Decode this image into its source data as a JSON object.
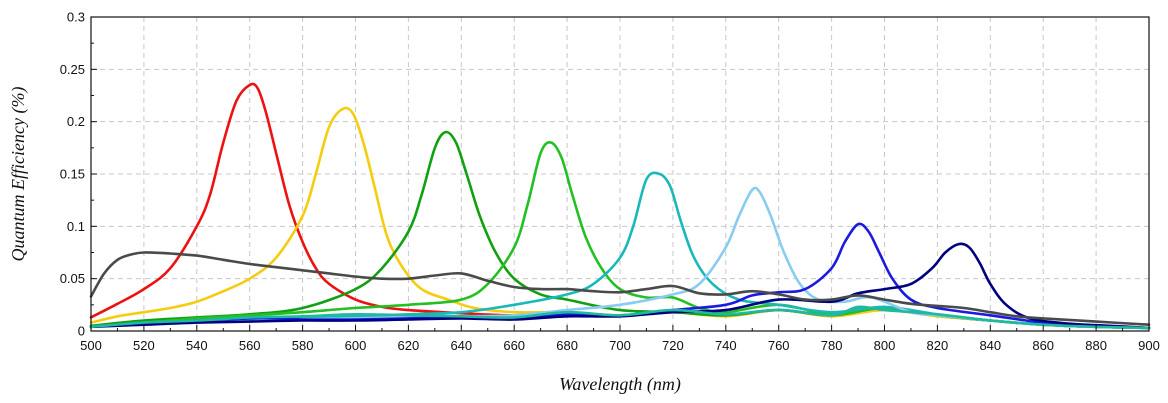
{
  "chart_data": {
    "type": "line",
    "title": "",
    "xlabel": "Wavelength (nm)",
    "ylabel": "Quantum Efficiency (%)",
    "xlim": [
      500,
      900
    ],
    "ylim": [
      0,
      0.3
    ],
    "grid": true,
    "x_ticks": [
      "500",
      "520",
      "540",
      "560",
      "580",
      "600",
      "620",
      "640",
      "660",
      "680",
      "700",
      "720",
      "740",
      "760",
      "780",
      "800",
      "820",
      "840",
      "860",
      "880",
      "900"
    ],
    "y_ticks": [
      "0",
      "0.05",
      "0.1",
      "0.15",
      "0.2",
      "0.25",
      "0.3"
    ],
    "series": [
      {
        "color": "#ee1111",
        "points": [
          [
            500,
            0.013
          ],
          [
            510,
            0.026
          ],
          [
            520,
            0.04
          ],
          [
            530,
            0.06
          ],
          [
            540,
            0.1
          ],
          [
            545,
            0.13
          ],
          [
            550,
            0.18
          ],
          [
            555,
            0.22
          ],
          [
            560,
            0.235
          ],
          [
            563,
            0.232
          ],
          [
            566,
            0.21
          ],
          [
            570,
            0.17
          ],
          [
            575,
            0.12
          ],
          [
            580,
            0.085
          ],
          [
            585,
            0.06
          ],
          [
            590,
            0.045
          ],
          [
            600,
            0.03
          ],
          [
            610,
            0.023
          ],
          [
            620,
            0.02
          ],
          [
            640,
            0.017
          ],
          [
            660,
            0.015
          ],
          [
            680,
            0.017
          ],
          [
            700,
            0.015
          ],
          [
            720,
            0.018
          ],
          [
            740,
            0.015
          ],
          [
            760,
            0.02
          ],
          [
            780,
            0.015
          ],
          [
            800,
            0.022
          ],
          [
            820,
            0.015
          ],
          [
            840,
            0.01
          ],
          [
            860,
            0.006
          ],
          [
            880,
            0.004
          ],
          [
            900,
            0.003
          ]
        ]
      },
      {
        "color": "#f5cc10",
        "points": [
          [
            500,
            0.008
          ],
          [
            510,
            0.014
          ],
          [
            520,
            0.018
          ],
          [
            530,
            0.022
          ],
          [
            540,
            0.028
          ],
          [
            550,
            0.038
          ],
          [
            560,
            0.05
          ],
          [
            570,
            0.07
          ],
          [
            580,
            0.11
          ],
          [
            585,
            0.15
          ],
          [
            590,
            0.195
          ],
          [
            595,
            0.212
          ],
          [
            599,
            0.208
          ],
          [
            603,
            0.18
          ],
          [
            607,
            0.14
          ],
          [
            612,
            0.09
          ],
          [
            618,
            0.06
          ],
          [
            625,
            0.04
          ],
          [
            635,
            0.03
          ],
          [
            645,
            0.022
          ],
          [
            660,
            0.018
          ],
          [
            680,
            0.018
          ],
          [
            700,
            0.015
          ],
          [
            720,
            0.018
          ],
          [
            740,
            0.014
          ],
          [
            760,
            0.02
          ],
          [
            780,
            0.014
          ],
          [
            800,
            0.02
          ],
          [
            820,
            0.014
          ],
          [
            840,
            0.01
          ],
          [
            860,
            0.006
          ],
          [
            880,
            0.004
          ],
          [
            900,
            0.003
          ]
        ]
      },
      {
        "color": "#11a011",
        "points": [
          [
            500,
            0.005
          ],
          [
            520,
            0.01
          ],
          [
            540,
            0.013
          ],
          [
            560,
            0.016
          ],
          [
            580,
            0.022
          ],
          [
            600,
            0.04
          ],
          [
            610,
            0.06
          ],
          [
            620,
            0.095
          ],
          [
            625,
            0.13
          ],
          [
            630,
            0.175
          ],
          [
            634,
            0.19
          ],
          [
            638,
            0.18
          ],
          [
            642,
            0.15
          ],
          [
            647,
            0.11
          ],
          [
            653,
            0.075
          ],
          [
            660,
            0.05
          ],
          [
            670,
            0.035
          ],
          [
            680,
            0.03
          ],
          [
            700,
            0.02
          ],
          [
            720,
            0.018
          ],
          [
            740,
            0.015
          ],
          [
            760,
            0.02
          ],
          [
            780,
            0.015
          ],
          [
            800,
            0.022
          ],
          [
            820,
            0.015
          ],
          [
            840,
            0.01
          ],
          [
            860,
            0.006
          ],
          [
            880,
            0.004
          ],
          [
            900,
            0.003
          ]
        ]
      },
      {
        "color": "#22c022",
        "points": [
          [
            500,
            0.004
          ],
          [
            520,
            0.008
          ],
          [
            540,
            0.012
          ],
          [
            560,
            0.015
          ],
          [
            580,
            0.018
          ],
          [
            600,
            0.022
          ],
          [
            620,
            0.025
          ],
          [
            640,
            0.03
          ],
          [
            650,
            0.045
          ],
          [
            660,
            0.08
          ],
          [
            665,
            0.12
          ],
          [
            670,
            0.17
          ],
          [
            674,
            0.18
          ],
          [
            678,
            0.165
          ],
          [
            682,
            0.13
          ],
          [
            687,
            0.09
          ],
          [
            693,
            0.06
          ],
          [
            700,
            0.04
          ],
          [
            710,
            0.032
          ],
          [
            720,
            0.032
          ],
          [
            730,
            0.022
          ],
          [
            740,
            0.018
          ],
          [
            760,
            0.025
          ],
          [
            780,
            0.016
          ],
          [
            800,
            0.022
          ],
          [
            820,
            0.015
          ],
          [
            840,
            0.01
          ],
          [
            860,
            0.006
          ],
          [
            880,
            0.004
          ],
          [
            900,
            0.003
          ]
        ]
      },
      {
        "color": "#1ab8b8",
        "points": [
          [
            500,
            0.004
          ],
          [
            520,
            0.007
          ],
          [
            540,
            0.01
          ],
          [
            560,
            0.012
          ],
          [
            580,
            0.013
          ],
          [
            600,
            0.014
          ],
          [
            620,
            0.016
          ],
          [
            640,
            0.018
          ],
          [
            660,
            0.025
          ],
          [
            680,
            0.035
          ],
          [
            690,
            0.045
          ],
          [
            700,
            0.07
          ],
          [
            705,
            0.1
          ],
          [
            710,
            0.145
          ],
          [
            715,
            0.15
          ],
          [
            719,
            0.138
          ],
          [
            723,
            0.105
          ],
          [
            728,
            0.07
          ],
          [
            735,
            0.045
          ],
          [
            745,
            0.03
          ],
          [
            760,
            0.025
          ],
          [
            780,
            0.018
          ],
          [
            800,
            0.023
          ],
          [
            820,
            0.016
          ],
          [
            840,
            0.01
          ],
          [
            860,
            0.006
          ],
          [
            880,
            0.004
          ],
          [
            900,
            0.003
          ]
        ]
      },
      {
        "color": "#88ccf0",
        "points": [
          [
            500,
            0.004
          ],
          [
            520,
            0.006
          ],
          [
            540,
            0.008
          ],
          [
            560,
            0.01
          ],
          [
            580,
            0.011
          ],
          [
            600,
            0.012
          ],
          [
            620,
            0.013
          ],
          [
            640,
            0.014
          ],
          [
            660,
            0.015
          ],
          [
            680,
            0.02
          ],
          [
            700,
            0.025
          ],
          [
            720,
            0.035
          ],
          [
            730,
            0.045
          ],
          [
            740,
            0.08
          ],
          [
            745,
            0.11
          ],
          [
            750,
            0.135
          ],
          [
            753,
            0.132
          ],
          [
            757,
            0.11
          ],
          [
            762,
            0.075
          ],
          [
            768,
            0.045
          ],
          [
            775,
            0.03
          ],
          [
            785,
            0.028
          ],
          [
            795,
            0.032
          ],
          [
            810,
            0.018
          ],
          [
            820,
            0.015
          ],
          [
            840,
            0.01
          ],
          [
            860,
            0.006
          ],
          [
            880,
            0.004
          ],
          [
            900,
            0.003
          ]
        ]
      },
      {
        "color": "#1a1ae0",
        "points": [
          [
            500,
            0.004
          ],
          [
            520,
            0.007
          ],
          [
            540,
            0.01
          ],
          [
            560,
            0.012
          ],
          [
            570,
            0.012
          ],
          [
            580,
            0.011
          ],
          [
            600,
            0.011
          ],
          [
            620,
            0.012
          ],
          [
            640,
            0.013
          ],
          [
            660,
            0.012
          ],
          [
            680,
            0.016
          ],
          [
            700,
            0.015
          ],
          [
            720,
            0.02
          ],
          [
            740,
            0.025
          ],
          [
            750,
            0.034
          ],
          [
            760,
            0.037
          ],
          [
            770,
            0.04
          ],
          [
            780,
            0.06
          ],
          [
            785,
            0.085
          ],
          [
            790,
            0.102
          ],
          [
            794,
            0.095
          ],
          [
            798,
            0.075
          ],
          [
            803,
            0.05
          ],
          [
            810,
            0.03
          ],
          [
            820,
            0.022
          ],
          [
            840,
            0.015
          ],
          [
            860,
            0.008
          ],
          [
            880,
            0.005
          ],
          [
            900,
            0.003
          ]
        ]
      },
      {
        "color": "#000080",
        "points": [
          [
            500,
            0.004
          ],
          [
            520,
            0.006
          ],
          [
            540,
            0.008
          ],
          [
            560,
            0.009
          ],
          [
            580,
            0.01
          ],
          [
            600,
            0.01
          ],
          [
            620,
            0.011
          ],
          [
            640,
            0.012
          ],
          [
            660,
            0.011
          ],
          [
            680,
            0.014
          ],
          [
            700,
            0.014
          ],
          [
            720,
            0.018
          ],
          [
            740,
            0.02
          ],
          [
            760,
            0.03
          ],
          [
            780,
            0.028
          ],
          [
            790,
            0.036
          ],
          [
            800,
            0.04
          ],
          [
            810,
            0.045
          ],
          [
            818,
            0.06
          ],
          [
            823,
            0.075
          ],
          [
            828,
            0.083
          ],
          [
            832,
            0.08
          ],
          [
            836,
            0.065
          ],
          [
            840,
            0.045
          ],
          [
            846,
            0.025
          ],
          [
            855,
            0.012
          ],
          [
            870,
            0.007
          ],
          [
            885,
            0.005
          ],
          [
            900,
            0.003
          ]
        ]
      },
      {
        "color": "#4a4a4a",
        "points": [
          [
            500,
            0.033
          ],
          [
            505,
            0.055
          ],
          [
            510,
            0.068
          ],
          [
            515,
            0.073
          ],
          [
            520,
            0.075
          ],
          [
            530,
            0.074
          ],
          [
            540,
            0.072
          ],
          [
            550,
            0.068
          ],
          [
            560,
            0.064
          ],
          [
            570,
            0.061
          ],
          [
            580,
            0.058
          ],
          [
            590,
            0.055
          ],
          [
            600,
            0.052
          ],
          [
            610,
            0.05
          ],
          [
            620,
            0.05
          ],
          [
            630,
            0.053
          ],
          [
            640,
            0.055
          ],
          [
            650,
            0.048
          ],
          [
            660,
            0.042
          ],
          [
            670,
            0.04
          ],
          [
            680,
            0.04
          ],
          [
            690,
            0.038
          ],
          [
            700,
            0.037
          ],
          [
            710,
            0.04
          ],
          [
            720,
            0.043
          ],
          [
            730,
            0.036
          ],
          [
            740,
            0.035
          ],
          [
            750,
            0.038
          ],
          [
            760,
            0.035
          ],
          [
            770,
            0.03
          ],
          [
            780,
            0.03
          ],
          [
            790,
            0.034
          ],
          [
            800,
            0.03
          ],
          [
            810,
            0.026
          ],
          [
            820,
            0.024
          ],
          [
            830,
            0.022
          ],
          [
            840,
            0.018
          ],
          [
            850,
            0.014
          ],
          [
            860,
            0.012
          ],
          [
            880,
            0.009
          ],
          [
            900,
            0.006
          ]
        ]
      },
      {
        "color": "#20b8a0",
        "points": [
          [
            500,
            0.004
          ],
          [
            520,
            0.008
          ],
          [
            540,
            0.01
          ],
          [
            560,
            0.013
          ],
          [
            580,
            0.014
          ],
          [
            600,
            0.016
          ],
          [
            620,
            0.015
          ],
          [
            640,
            0.014
          ],
          [
            660,
            0.013
          ],
          [
            680,
            0.018
          ],
          [
            700,
            0.015
          ],
          [
            720,
            0.02
          ],
          [
            740,
            0.016
          ],
          [
            760,
            0.02
          ],
          [
            780,
            0.015
          ],
          [
            790,
            0.023
          ],
          [
            800,
            0.02
          ],
          [
            820,
            0.016
          ],
          [
            840,
            0.01
          ],
          [
            860,
            0.006
          ],
          [
            880,
            0.004
          ],
          [
            900,
            0.003
          ]
        ]
      }
    ]
  }
}
